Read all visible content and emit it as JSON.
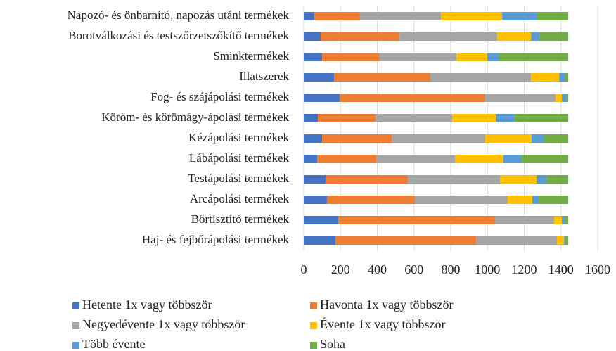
{
  "chart_data": {
    "type": "stacked_bar_horizontal",
    "categories": [
      "Napozó- és önbarnító, napozás utáni termékek",
      "Borotválkozási és testszőrzetszőkítő termékek",
      "Sminktermékek",
      "Illatszerek",
      "Fog- és szájápolási termékek",
      "Köröm- és körömágy-ápolási termékek",
      "Kézápolási termékek",
      "Lábápolási termékek",
      "Testápolási termékek",
      "Arcápolási termékek",
      "Bőrtisztító termékek",
      "Haj- és fejbőrápolási termékek"
    ],
    "series": [
      {
        "name": "Hetente 1x vagy többször",
        "color": "#4472c4",
        "values": [
          57,
          92,
          100,
          165,
          195,
          77,
          100,
          73,
          119,
          126,
          188,
          172
        ]
      },
      {
        "name": "Havonta 1x vagy többször",
        "color": "#ed7d31",
        "values": [
          249,
          429,
          313,
          524,
          793,
          314,
          379,
          321,
          448,
          479,
          853,
          766
        ]
      },
      {
        "name": "Negyedévente 1x vagy többször",
        "color": "#a5a5a5",
        "values": [
          441,
          532,
          418,
          548,
          383,
          417,
          509,
          429,
          501,
          505,
          322,
          440
        ]
      },
      {
        "name": "Évente 1x vagy többször",
        "color": "#ffc000",
        "values": [
          333,
          184,
          168,
          153,
          34,
          237,
          252,
          264,
          199,
          134,
          42,
          39
        ]
      },
      {
        "name": "Több évente",
        "color": "#5b9bd5",
        "values": [
          191,
          46,
          65,
          34,
          23,
          104,
          69,
          100,
          54,
          35,
          15,
          7
        ]
      },
      {
        "name": "Soha",
        "color": "#70ad47",
        "values": [
          169,
          157,
          376,
          16,
          12,
          291,
          131,
          253,
          119,
          161,
          20,
          16
        ]
      }
    ],
    "xlim": [
      0,
      1600
    ],
    "xticks": [
      0,
      200,
      400,
      600,
      800,
      1000,
      1200,
      1400,
      1600
    ],
    "grid": true,
    "legend": "bottom"
  }
}
